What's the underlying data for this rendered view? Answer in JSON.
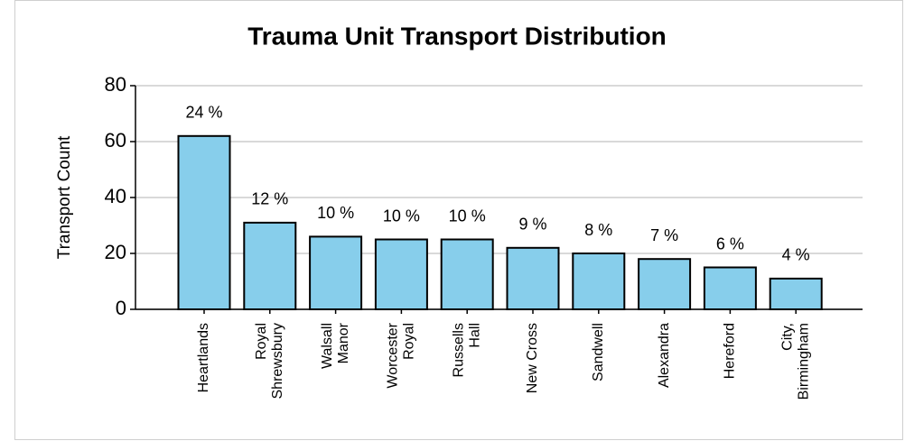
{
  "chart_data": {
    "type": "bar",
    "title": "Trauma Unit Transport Distribution",
    "y_label": "Transport Count",
    "categories": [
      [
        "Heartlands"
      ],
      [
        "Royal",
        "Shrewsbury"
      ],
      [
        "Walsall",
        "Manor"
      ],
      [
        "Worcester",
        "Royal"
      ],
      [
        "Russells",
        "Hall"
      ],
      [
        "New Cross"
      ],
      [
        "Sandwell"
      ],
      [
        "Alexandra"
      ],
      [
        "Hereford"
      ],
      [
        "City,",
        "Birmingham"
      ]
    ],
    "values": [
      62,
      31,
      26,
      25,
      25,
      22,
      20,
      18,
      15,
      11
    ],
    "annotations": [
      "24 %",
      "12 %",
      "10 %",
      "10 %",
      "10 %",
      "9 %",
      "8 %",
      "7 %",
      "6 %",
      "4 %"
    ],
    "color": "#87ceeb",
    "ylim": [
      0,
      80
    ],
    "yticks": [
      0,
      20,
      40,
      60,
      80
    ],
    "grid": true
  }
}
